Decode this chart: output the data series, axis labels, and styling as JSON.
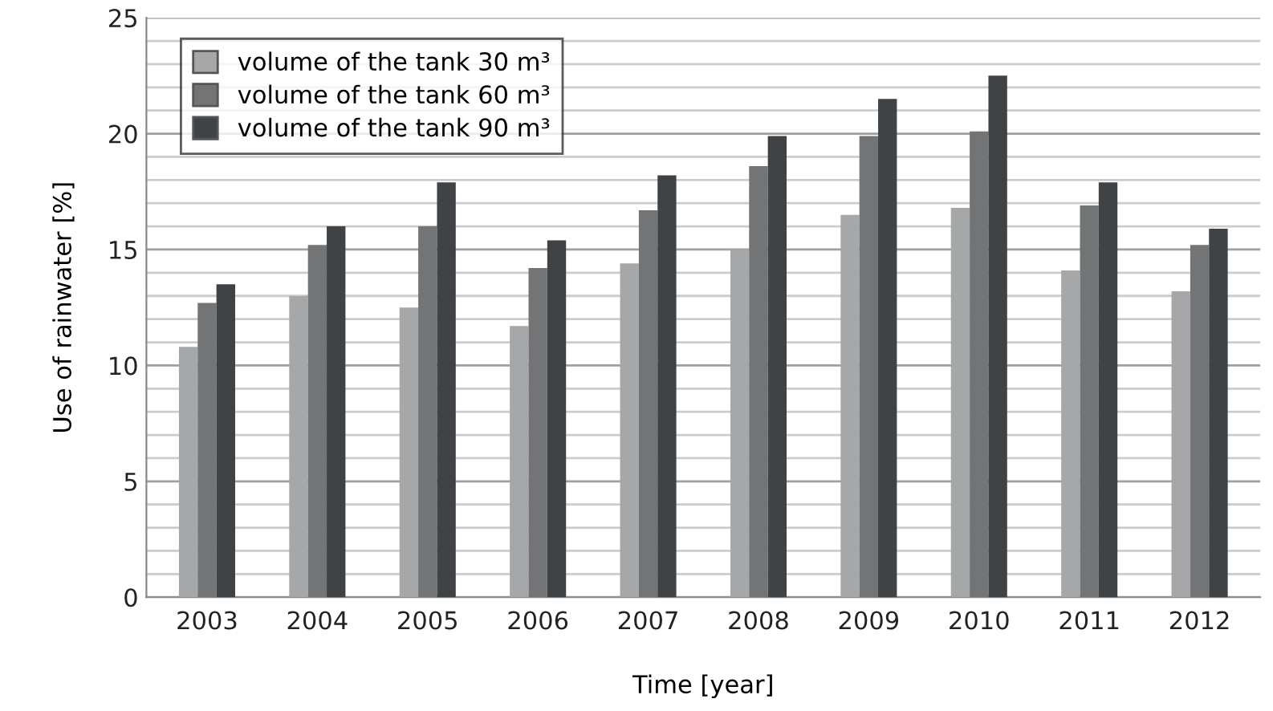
{
  "chart_data": {
    "type": "bar",
    "xlabel": "Time [year]",
    "ylabel": "Use of rainwater [%]",
    "categories": [
      "2003",
      "2004",
      "2005",
      "2006",
      "2007",
      "2008",
      "2009",
      "2010",
      "2011",
      "2012"
    ],
    "series": [
      {
        "name": "volume of the tank 30 m³",
        "color": "#a6a7a8",
        "values": [
          10.8,
          13.0,
          12.5,
          11.7,
          14.4,
          15.0,
          16.5,
          16.8,
          14.1,
          13.2
        ]
      },
      {
        "name": "volume of the tank 60 m³",
        "color": "#737476",
        "values": [
          12.7,
          15.2,
          16.0,
          14.2,
          16.7,
          18.6,
          19.9,
          20.1,
          16.9,
          15.2
        ]
      },
      {
        "name": "volume of the tank 90 m³",
        "color": "#404345",
        "values": [
          13.5,
          16.0,
          17.9,
          15.4,
          18.2,
          19.9,
          21.5,
          22.5,
          17.9,
          15.9
        ]
      }
    ],
    "ylim": [
      0,
      25
    ],
    "yticks": [
      0,
      {
        "value": 1,
        "label": null
      },
      {
        "value": 2,
        "label": null
      },
      {
        "value": 3,
        "label": null
      },
      {
        "value": 4,
        "label": null
      },
      5,
      {
        "value": 6,
        "label": null
      },
      {
        "value": 7,
        "label": null
      },
      {
        "value": 8,
        "label": null
      },
      {
        "value": 9,
        "label": null
      },
      10,
      {
        "value": 11,
        "label": null
      },
      {
        "value": 12,
        "label": null
      },
      {
        "value": 13,
        "label": null
      },
      {
        "value": 14,
        "label": null
      },
      15,
      {
        "value": 16,
        "label": null
      },
      {
        "value": 17,
        "label": null
      },
      {
        "value": 18,
        "label": null
      },
      {
        "value": 19,
        "label": null
      },
      20,
      {
        "value": 21,
        "label": null
      },
      {
        "value": 22,
        "label": null
      },
      {
        "value": 23,
        "label": null
      },
      {
        "value": 24,
        "label": null
      },
      25
    ],
    "grid": "y",
    "legend": "top left"
  }
}
